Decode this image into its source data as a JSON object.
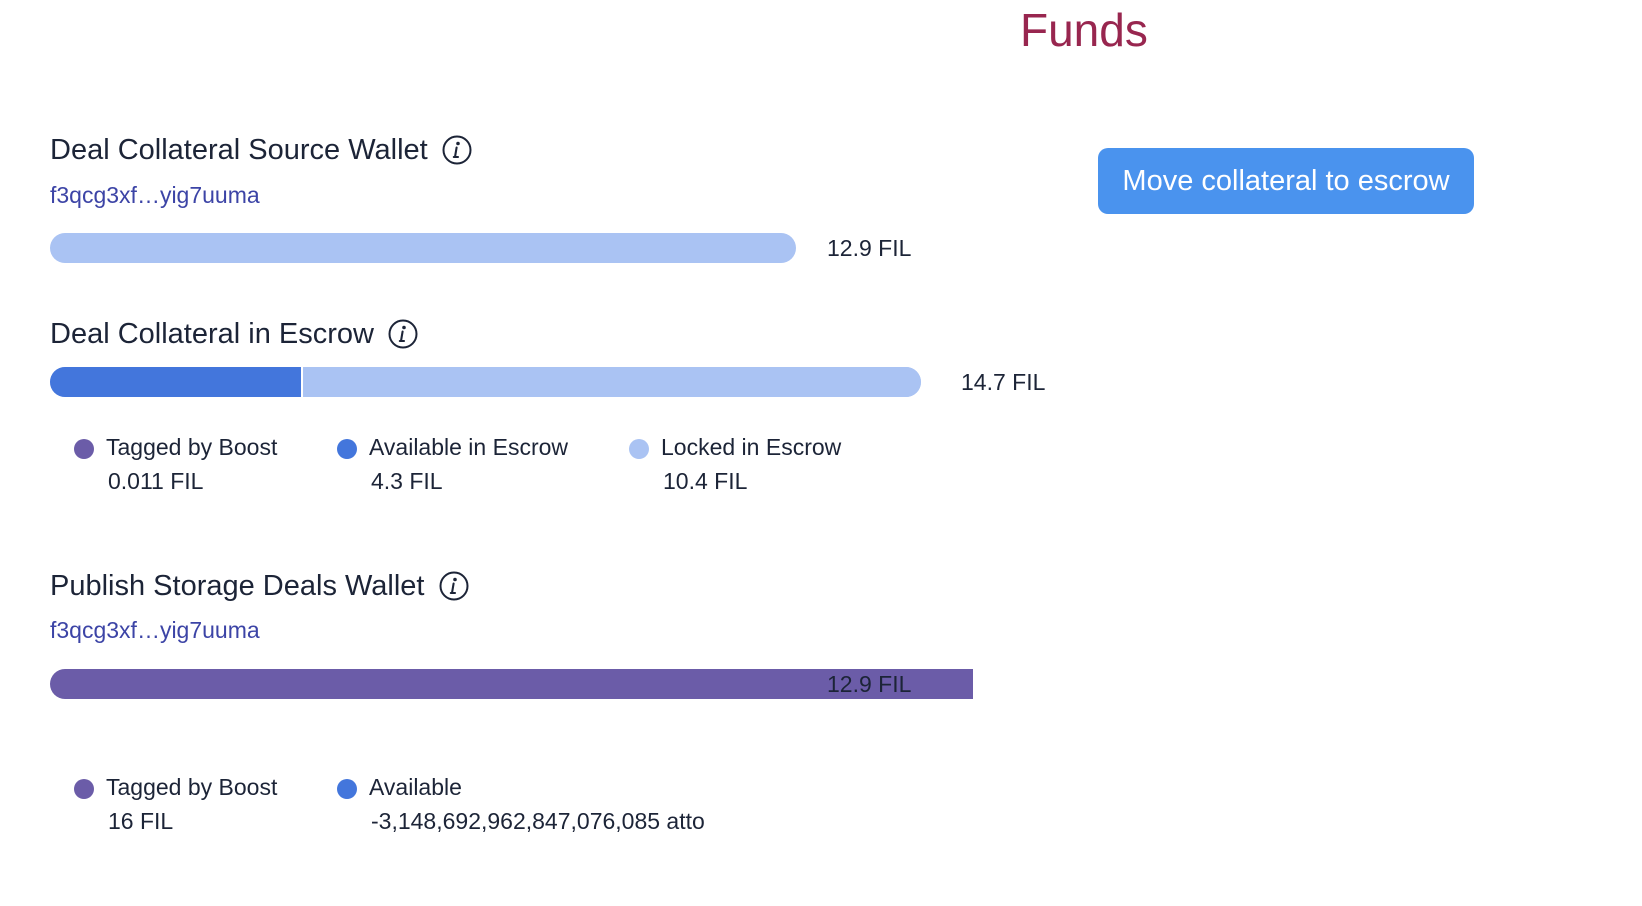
{
  "title": "Funds",
  "colors": {
    "title": "#98264f",
    "link": "#3c44a6",
    "tagged_by_boost": "#6b5ca8",
    "available": "#4376dc",
    "locked": "#aac3f3",
    "button": "#4a93ee"
  },
  "collateral_source": {
    "heading": "Deal Collateral Source Wallet",
    "info_icon": "info-icon",
    "address": "f3qcg3xf…yig7uuma",
    "bar_value": "12.9 FIL"
  },
  "escrow": {
    "heading": "Deal Collateral in Escrow",
    "info_icon": "info-icon",
    "bar_value": "14.7 FIL",
    "available_fraction": 0.29,
    "locked_fraction": 0.71,
    "legend": [
      {
        "label": "Tagged by Boost",
        "value": "0.011 FIL",
        "color": "#6b5ca8"
      },
      {
        "label": "Available in Escrow",
        "value": "4.3 FIL",
        "color": "#4376dc"
      },
      {
        "label": "Locked in Escrow",
        "value": "10.4 FIL",
        "color": "#aac3f3"
      }
    ]
  },
  "publish_wallet": {
    "heading": "Publish Storage Deals Wallet",
    "info_icon": "info-icon",
    "address": "f3qcg3xf…yig7uuma",
    "bar_value": "12.9 FIL",
    "tagged_fraction": 1.0,
    "legend": [
      {
        "label": "Tagged by Boost",
        "value": "16 FIL",
        "color": "#6b5ca8"
      },
      {
        "label": "Available",
        "value": "-3,148,692,962,847,076,085 atto",
        "color": "#4376dc"
      }
    ]
  },
  "actions": {
    "move_collateral_label": "Move collateral to escrow"
  }
}
